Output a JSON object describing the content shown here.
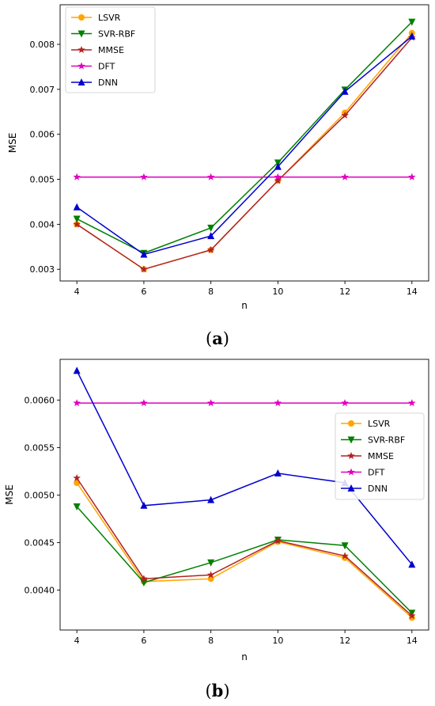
{
  "chart_data": [
    {
      "type": "line",
      "panel_label": "(a)",
      "caption": {
        "open": "(",
        "letter": "a",
        "close": ")"
      },
      "xlabel": "n",
      "ylabel": "MSE",
      "x": [
        4,
        6,
        8,
        10,
        12,
        14
      ],
      "x_ticks": [
        4,
        6,
        8,
        10,
        12,
        14
      ],
      "x_tick_labels": [
        "4",
        "6",
        "8",
        "10",
        "12",
        "14"
      ],
      "xlim": [
        3.5,
        14.5
      ],
      "ylim": [
        0.00274,
        0.00888
      ],
      "y_ticks": [
        0.003,
        0.004,
        0.005,
        0.006,
        0.007,
        0.008
      ],
      "y_tick_labels": [
        "0.003",
        "0.004",
        "0.005",
        "0.006",
        "0.007",
        "0.008"
      ],
      "legend_position": "top-left",
      "grid": false,
      "series": [
        {
          "name": "LSVR",
          "marker": "circle",
          "color": "#ffa500",
          "values": [
            0.004,
            0.003,
            0.00343,
            0.00497,
            0.00648,
            0.00825
          ]
        },
        {
          "name": "SVR-RBF",
          "marker": "triangle-down",
          "color": "#008000",
          "values": [
            0.00412,
            0.00336,
            0.00392,
            0.00537,
            0.00699,
            0.0085
          ]
        },
        {
          "name": "MMSE",
          "marker": "star",
          "color": "#b22222",
          "values": [
            0.004,
            0.003,
            0.00343,
            0.00497,
            0.00642,
            0.00815
          ]
        },
        {
          "name": "DFT",
          "marker": "star",
          "color": "#e000c0",
          "values": [
            0.00505,
            0.00505,
            0.00505,
            0.00505,
            0.00505,
            0.00505
          ]
        },
        {
          "name": "DNN",
          "marker": "triangle-up",
          "color": "#0000cd",
          "values": [
            0.00438,
            0.00333,
            0.00374,
            0.00528,
            0.00695,
            0.00818
          ]
        }
      ]
    },
    {
      "type": "line",
      "panel_label": "(b)",
      "caption": {
        "open": "(",
        "letter": "b",
        "close": ")"
      },
      "xlabel": "n",
      "ylabel": "MSE",
      "x": [
        4,
        6,
        8,
        10,
        12,
        14
      ],
      "x_ticks": [
        4,
        6,
        8,
        10,
        12,
        14
      ],
      "x_tick_labels": [
        "4",
        "6",
        "8",
        "10",
        "12",
        "14"
      ],
      "xlim": [
        3.5,
        14.5
      ],
      "ylim": [
        0.00358,
        0.00643
      ],
      "y_ticks": [
        0.004,
        0.0045,
        0.005,
        0.0055,
        0.006
      ],
      "y_tick_labels": [
        "0.0040",
        "0.0045",
        "0.0050",
        "0.0055",
        "0.0060"
      ],
      "legend_position": "center-right",
      "grid": false,
      "series": [
        {
          "name": "LSVR",
          "marker": "circle",
          "color": "#ffa500",
          "values": [
            0.00513,
            0.00409,
            0.00412,
            0.00451,
            0.00434,
            0.00371
          ]
        },
        {
          "name": "SVR-RBF",
          "marker": "triangle-down",
          "color": "#008000",
          "values": [
            0.00488,
            0.00408,
            0.00429,
            0.00453,
            0.00447,
            0.00376
          ]
        },
        {
          "name": "MMSE",
          "marker": "star",
          "color": "#b22222",
          "values": [
            0.00518,
            0.00412,
            0.00416,
            0.00452,
            0.00436,
            0.00373
          ]
        },
        {
          "name": "DFT",
          "marker": "star",
          "color": "#e000c0",
          "values": [
            0.00597,
            0.00597,
            0.00597,
            0.00597,
            0.00597,
            0.00597
          ]
        },
        {
          "name": "DNN",
          "marker": "triangle-up",
          "color": "#0000cd",
          "values": [
            0.00631,
            0.00489,
            0.00495,
            0.00523,
            0.00513,
            0.00427
          ]
        }
      ]
    }
  ]
}
